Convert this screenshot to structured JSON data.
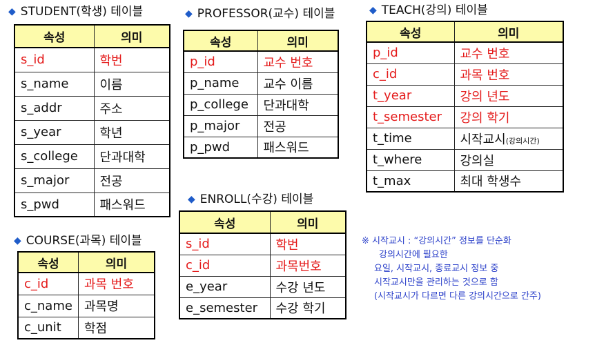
{
  "header_cols": [
    "속성",
    "의미"
  ],
  "student": {
    "title": "STUDENT(학생) 테이블",
    "rows": [
      {
        "attr": "s_id",
        "meaning": "학번",
        "key": true
      },
      {
        "attr": "s_name",
        "meaning": "이름",
        "key": false
      },
      {
        "attr": "s_addr",
        "meaning": "주소",
        "key": false
      },
      {
        "attr": "s_year",
        "meaning": "학년",
        "key": false
      },
      {
        "attr": "s_college",
        "meaning": "단과대학",
        "key": false
      },
      {
        "attr": "s_major",
        "meaning": "전공",
        "key": false
      },
      {
        "attr": "s_pwd",
        "meaning": "패스워드",
        "key": false
      }
    ]
  },
  "professor": {
    "title": "PROFESSOR(교수) 테이블",
    "rows": [
      {
        "attr": "p_id",
        "meaning": "교수 번호",
        "key": true
      },
      {
        "attr": "p_name",
        "meaning": "교수 이름",
        "key": false
      },
      {
        "attr": "p_college",
        "meaning": "단과대학",
        "key": false
      },
      {
        "attr": "p_major",
        "meaning": "전공",
        "key": false
      },
      {
        "attr": "p_pwd",
        "meaning": "패스워드",
        "key": false
      }
    ]
  },
  "teach": {
    "title": "TEACH(강의) 테이블",
    "rows": [
      {
        "attr": "p_id",
        "meaning": "교수 번호",
        "key": true
      },
      {
        "attr": "c_id",
        "meaning": "과목 번호",
        "key": true
      },
      {
        "attr": "t_year",
        "meaning": "강의 년도",
        "key": true
      },
      {
        "attr": "t_semester",
        "meaning": "강의 학기",
        "key": true
      },
      {
        "attr": "t_time",
        "meaning": "시작교시",
        "meaning_small": "(강의시간)",
        "key": false
      },
      {
        "attr": "t_where",
        "meaning": "강의실",
        "key": false
      },
      {
        "attr": "t_max",
        "meaning": "최대 학생수",
        "key": false
      }
    ]
  },
  "enroll": {
    "title": "ENROLL(수강) 테이블",
    "rows": [
      {
        "attr": "s_id",
        "meaning": "학번",
        "key": true
      },
      {
        "attr": "c_id",
        "meaning": "과목번호",
        "key": true
      },
      {
        "attr": "e_year",
        "meaning": "수강 년도",
        "key": false
      },
      {
        "attr": "e_semester",
        "meaning": "수강 학기",
        "key": false
      }
    ]
  },
  "course": {
    "title": "COURSE(과목) 테이블",
    "rows": [
      {
        "attr": "c_id",
        "meaning": "과목 번호",
        "key": true
      },
      {
        "attr": "c_name",
        "meaning": "과목명",
        "key": false
      },
      {
        "attr": "c_unit",
        "meaning": "학점",
        "key": false
      }
    ]
  },
  "note": {
    "lines": [
      "※ 시작교시 : “강의시간” 정보를 단순화",
      "강의시간에 필요한",
      "요일, 시작교시, 종료교시 정보 중",
      "시작교시만을  관리하는 것으로 함",
      "(시작교시가 다르면 다른 강의시간으로 간주)"
    ]
  },
  "colors": {
    "key_text": "#e41a1a",
    "header_bg": "#fdfbab",
    "bullet": "#1f5cc9",
    "note_text": "#2a3fc9"
  }
}
